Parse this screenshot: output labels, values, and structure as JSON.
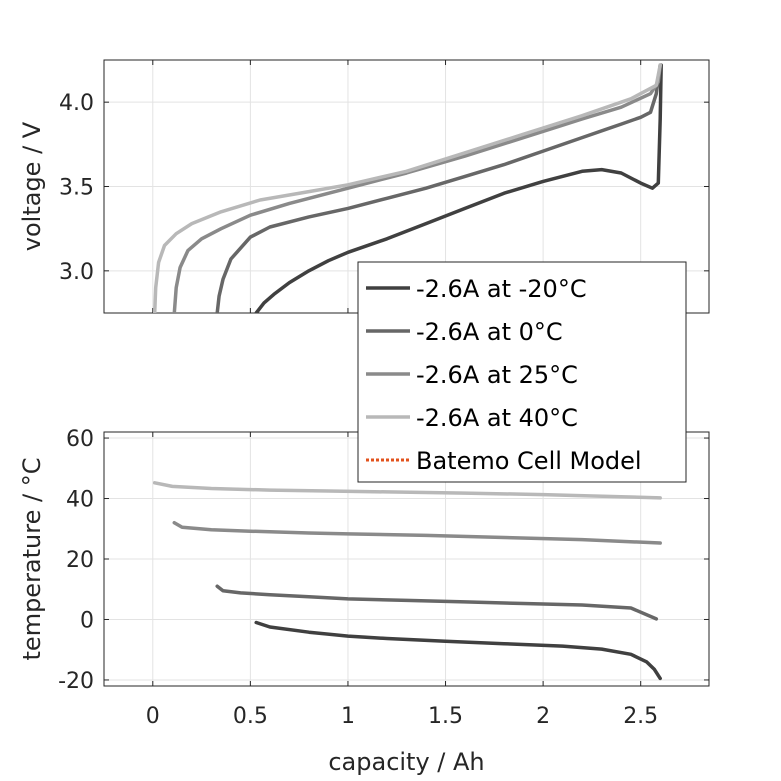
{
  "chart_data": [
    {
      "type": "line",
      "title": "",
      "xlabel": "",
      "ylabel": "voltage / V",
      "xlim": [
        -0.25,
        2.85
      ],
      "ylim": [
        2.75,
        4.25
      ],
      "grid": true,
      "x_ticks": [
        0,
        0.5,
        1,
        1.5,
        2,
        2.5
      ],
      "y_ticks": [
        3.0,
        3.5,
        4.0
      ],
      "y_tick_labels": [
        "3.0",
        "3.5",
        "4.0"
      ],
      "series": [
        {
          "name": "-2.6A at -20°C",
          "color": "#404040",
          "x": [
            0.53,
            0.57,
            0.62,
            0.7,
            0.8,
            0.9,
            1.0,
            1.2,
            1.4,
            1.6,
            1.8,
            2.0,
            2.2,
            2.3,
            2.4,
            2.5,
            2.56,
            2.59,
            2.6,
            2.605
          ],
          "y": [
            2.75,
            2.81,
            2.86,
            2.93,
            3.0,
            3.06,
            3.11,
            3.19,
            3.28,
            3.37,
            3.46,
            3.53,
            3.59,
            3.6,
            3.58,
            3.52,
            3.49,
            3.52,
            3.9,
            4.22
          ]
        },
        {
          "name": "-2.6A at 0°C",
          "color": "#676767",
          "x": [
            0.33,
            0.34,
            0.36,
            0.4,
            0.5,
            0.6,
            0.8,
            1.0,
            1.2,
            1.4,
            1.6,
            1.8,
            2.0,
            2.2,
            2.4,
            2.5,
            2.55,
            2.58,
            2.6
          ],
          "y": [
            2.75,
            2.85,
            2.95,
            3.07,
            3.2,
            3.26,
            3.32,
            3.37,
            3.43,
            3.49,
            3.56,
            3.63,
            3.71,
            3.79,
            3.87,
            3.91,
            3.94,
            4.05,
            4.22
          ]
        },
        {
          "name": "-2.6A at 25°C",
          "color": "#8a8a8a",
          "x": [
            0.11,
            0.12,
            0.14,
            0.18,
            0.25,
            0.35,
            0.5,
            0.7,
            1.0,
            1.3,
            1.6,
            1.9,
            2.2,
            2.4,
            2.55,
            2.59,
            2.6
          ],
          "y": [
            2.75,
            2.9,
            3.02,
            3.12,
            3.19,
            3.25,
            3.33,
            3.4,
            3.49,
            3.58,
            3.68,
            3.79,
            3.9,
            3.97,
            4.05,
            4.12,
            4.22
          ]
        },
        {
          "name": "-2.6A at 40°C",
          "color": "#b8b8b8",
          "x": [
            0.01,
            0.015,
            0.03,
            0.06,
            0.12,
            0.2,
            0.35,
            0.55,
            0.8,
            1.0,
            1.3,
            1.6,
            1.9,
            2.2,
            2.45,
            2.58,
            2.6
          ],
          "y": [
            2.75,
            2.9,
            3.05,
            3.15,
            3.22,
            3.28,
            3.35,
            3.42,
            3.47,
            3.51,
            3.59,
            3.7,
            3.81,
            3.92,
            4.02,
            4.1,
            4.22
          ]
        }
      ]
    },
    {
      "type": "line",
      "title": "",
      "xlabel": "capacity / Ah",
      "ylabel": "temperature / °C",
      "xlim": [
        -0.25,
        2.85
      ],
      "ylim": [
        -22,
        62
      ],
      "grid": true,
      "x_ticks": [
        0,
        0.5,
        1,
        1.5,
        2,
        2.5
      ],
      "x_tick_labels": [
        "0",
        "0.5",
        "1",
        "1.5",
        "2",
        "2.5"
      ],
      "y_ticks": [
        -20,
        0,
        20,
        40,
        60
      ],
      "y_tick_labels": [
        "-20",
        "0",
        "20",
        "40",
        "60"
      ],
      "series": [
        {
          "name": "-2.6A at -20°C",
          "color": "#404040",
          "x": [
            0.53,
            0.6,
            0.8,
            1.0,
            1.2,
            1.5,
            1.8,
            2.1,
            2.3,
            2.45,
            2.53,
            2.57,
            2.6
          ],
          "y": [
            -1,
            -2.5,
            -4.2,
            -5.5,
            -6.3,
            -7.2,
            -8,
            -8.8,
            -9.8,
            -11.5,
            -14,
            -16.5,
            -19.5
          ]
        },
        {
          "name": "-2.6A at 0°C",
          "color": "#676767",
          "x": [
            0.33,
            0.36,
            0.45,
            0.6,
            0.8,
            1.0,
            1.3,
            1.6,
            1.9,
            2.2,
            2.45,
            2.58
          ],
          "y": [
            11,
            9.5,
            8.8,
            8.2,
            7.5,
            6.8,
            6.3,
            5.8,
            5.3,
            4.8,
            3.8,
            0.2
          ]
        },
        {
          "name": "-2.6A at 25°C",
          "color": "#8a8a8a",
          "x": [
            0.11,
            0.15,
            0.3,
            0.5,
            0.8,
            1.0,
            1.4,
            1.8,
            2.2,
            2.6
          ],
          "y": [
            32,
            30.5,
            29.7,
            29.2,
            28.6,
            28.3,
            27.8,
            27.1,
            26.4,
            25.3
          ]
        },
        {
          "name": "-2.6A at 40°C",
          "color": "#b8b8b8",
          "x": [
            0.01,
            0.1,
            0.3,
            0.6,
            0.9,
            1.2,
            1.6,
            2.0,
            2.4,
            2.6
          ],
          "y": [
            45.2,
            44,
            43.3,
            42.8,
            42.5,
            42.2,
            41.8,
            41.3,
            40.6,
            40.2
          ]
        }
      ]
    }
  ],
  "legend": {
    "placement": "center-right",
    "entries": [
      {
        "label": "-2.6A at -20°C",
        "color": "#404040",
        "style": "solid"
      },
      {
        "label": "-2.6A at 0°C",
        "color": "#676767",
        "style": "solid"
      },
      {
        "label": "-2.6A at 25°C",
        "color": "#8a8a8a",
        "style": "solid"
      },
      {
        "label": "-2.6A at 40°C",
        "color": "#b8b8b8",
        "style": "solid"
      },
      {
        "label": "Batemo Cell Model",
        "color": "#e2521c",
        "style": "dotted"
      }
    ]
  },
  "colors": {
    "grid": "#e3e3e3",
    "axis": "#262626"
  }
}
